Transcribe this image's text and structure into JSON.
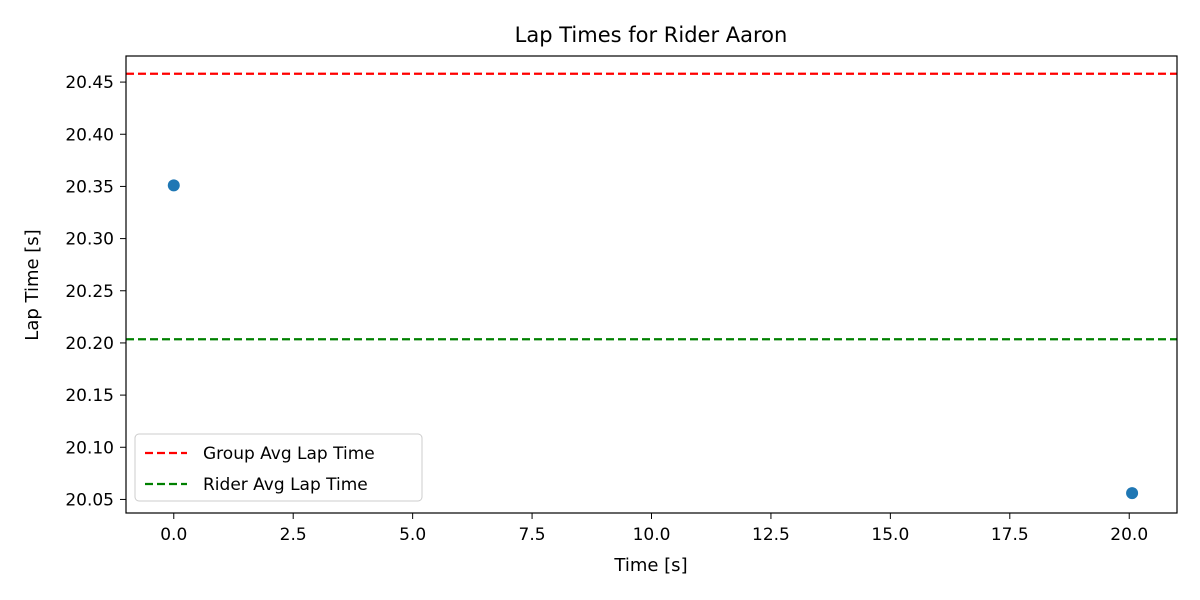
{
  "chart_data": {
    "type": "scatter",
    "title": "Lap Times for Rider Aaron",
    "xlabel": "Time [s]",
    "ylabel": "Lap Time [s]",
    "xlim": [
      -1.0,
      21.0
    ],
    "ylim": [
      20.037,
      20.475
    ],
    "x_ticks": [
      0.0,
      2.5,
      5.0,
      7.5,
      10.0,
      12.5,
      15.0,
      17.5,
      20.0
    ],
    "x_tick_labels": [
      "0.0",
      "2.5",
      "5.0",
      "7.5",
      "10.0",
      "12.5",
      "15.0",
      "17.5",
      "20.0"
    ],
    "y_ticks": [
      20.05,
      20.1,
      20.15,
      20.2,
      20.25,
      20.3,
      20.35,
      20.4,
      20.45
    ],
    "y_tick_labels": [
      "20.05",
      "20.10",
      "20.15",
      "20.20",
      "20.25",
      "20.30",
      "20.35",
      "20.40",
      "20.45"
    ],
    "grid": false,
    "legend_position": "lower-left",
    "series": [
      {
        "kind": "scatter",
        "color": "#1f77b4",
        "points": [
          {
            "x": 0.0,
            "y": 20.351
          },
          {
            "x": 20.06,
            "y": 20.056
          }
        ]
      }
    ],
    "reference_lines": [
      {
        "name": "Group Avg Lap Time",
        "y": 20.458,
        "color": "#ff0000",
        "style": "dashed"
      },
      {
        "name": "Rider Avg Lap Time",
        "y": 20.2035,
        "color": "#008000",
        "style": "dashed"
      }
    ]
  }
}
